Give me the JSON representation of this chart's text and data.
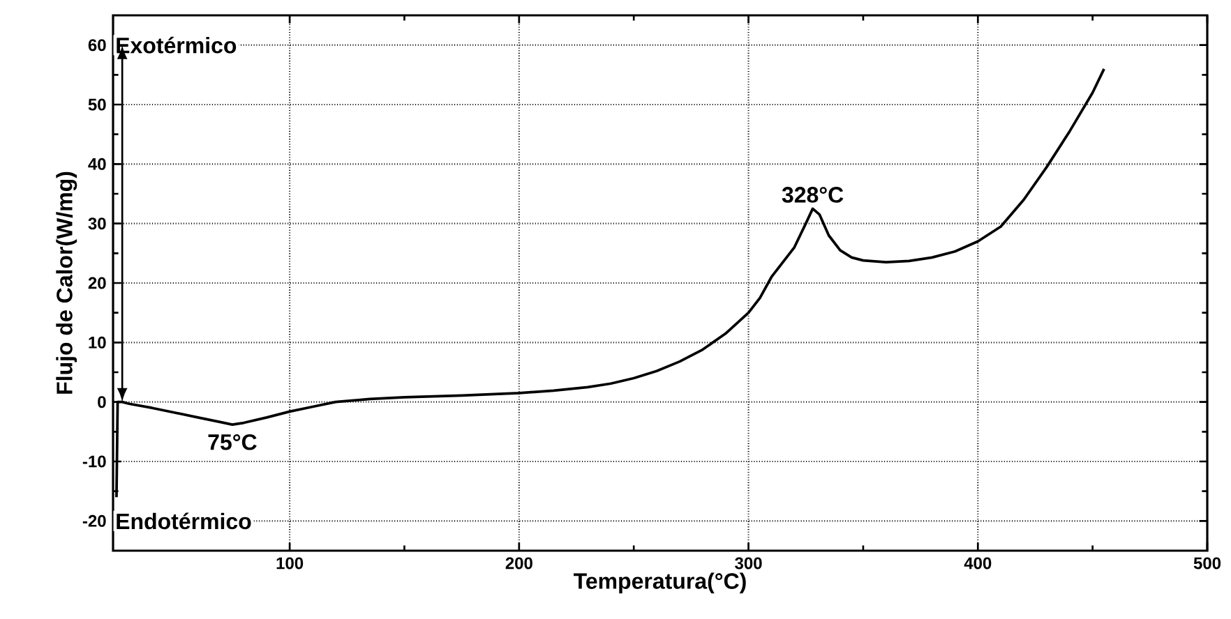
{
  "chart_data": {
    "type": "line",
    "xlabel": "Temperatura(°C)",
    "ylabel": "Flujo de Calor(W/mg)",
    "xlim": [
      23,
      500
    ],
    "ylim": [
      -25,
      65
    ],
    "xticks": [
      100,
      200,
      300,
      400,
      500
    ],
    "yticks": [
      -20,
      -10,
      0,
      10,
      20,
      30,
      40,
      50,
      60
    ],
    "grid": true,
    "line_style": "solid",
    "x": [
      24.5,
      25,
      27,
      30,
      40,
      50,
      60,
      70,
      75,
      80,
      90,
      100,
      110,
      120,
      135,
      150,
      175,
      200,
      215,
      230,
      240,
      250,
      260,
      270,
      280,
      290,
      300,
      305,
      310,
      315,
      320,
      325,
      328,
      331,
      335,
      340,
      345,
      350,
      360,
      370,
      380,
      390,
      400,
      410,
      420,
      430,
      440,
      450,
      455
    ],
    "series": [
      {
        "color": "#000000",
        "values": [
          -16,
          0,
          0,
          -0.3,
          -1,
          -1.8,
          -2.6,
          -3.4,
          -3.8,
          -3.5,
          -2.6,
          -1.6,
          -0.8,
          0,
          0.5,
          0.8,
          1.1,
          1.5,
          1.9,
          2.5,
          3.1,
          4,
          5.2,
          6.8,
          8.8,
          11.5,
          15,
          17.5,
          21,
          23.5,
          26,
          30,
          32.5,
          31.5,
          28,
          25.5,
          24.3,
          23.8,
          23.5,
          23.7,
          24.3,
          25.3,
          27,
          29.5,
          34,
          39.5,
          45.5,
          52,
          56
        ]
      }
    ],
    "annotations": [
      "Exotérmico",
      "Endotérmico",
      {
        "text": "75°C",
        "x": 75,
        "y": -3.8
      },
      {
        "text": "328°C",
        "x": 328,
        "y": 32.5
      }
    ]
  }
}
